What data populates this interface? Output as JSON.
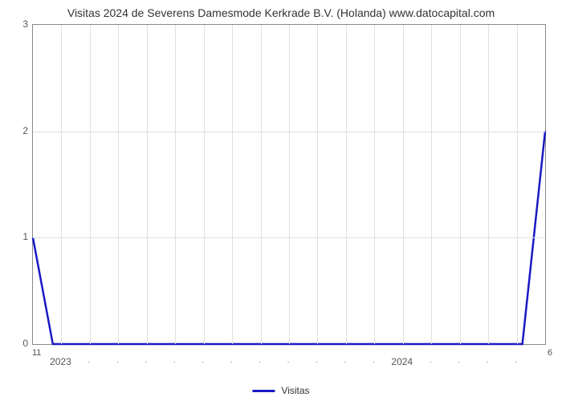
{
  "chart": {
    "type": "line",
    "title": "Visitas 2024 de Severens Damesmode Kerkrade B.V. (Holanda) www.datocapital.com",
    "title_fontsize": 14,
    "title_color": "#333333",
    "background_color": "#ffffff",
    "plot_border_color": "#888888",
    "grid_color": "#e0e0e0",
    "axis_label_color": "#555555",
    "axis_fontsize": 12,
    "ylim": [
      0,
      3
    ],
    "yticks": [
      0,
      1,
      2,
      3
    ],
    "xlim": [
      0,
      18
    ],
    "x_major_ticks": [
      {
        "pos": 1,
        "label": "2023"
      },
      {
        "pos": 13,
        "label": "2024"
      }
    ],
    "x_minor_tick_positions": [
      2,
      3,
      4,
      5,
      6,
      7,
      8,
      9,
      10,
      11,
      12,
      14,
      15,
      16,
      17
    ],
    "corner_left": "11",
    "corner_right": "6",
    "series": {
      "name": "Visitas",
      "color": "#1919c3",
      "line_width": 2.5,
      "points": [
        {
          "x": 0,
          "y": 1
        },
        {
          "x": 0.7,
          "y": 0
        },
        {
          "x": 17.2,
          "y": 0
        },
        {
          "x": 18,
          "y": 2
        }
      ]
    },
    "legend": {
      "label": "Visitas",
      "swatch_color": "#1919c3"
    }
  }
}
